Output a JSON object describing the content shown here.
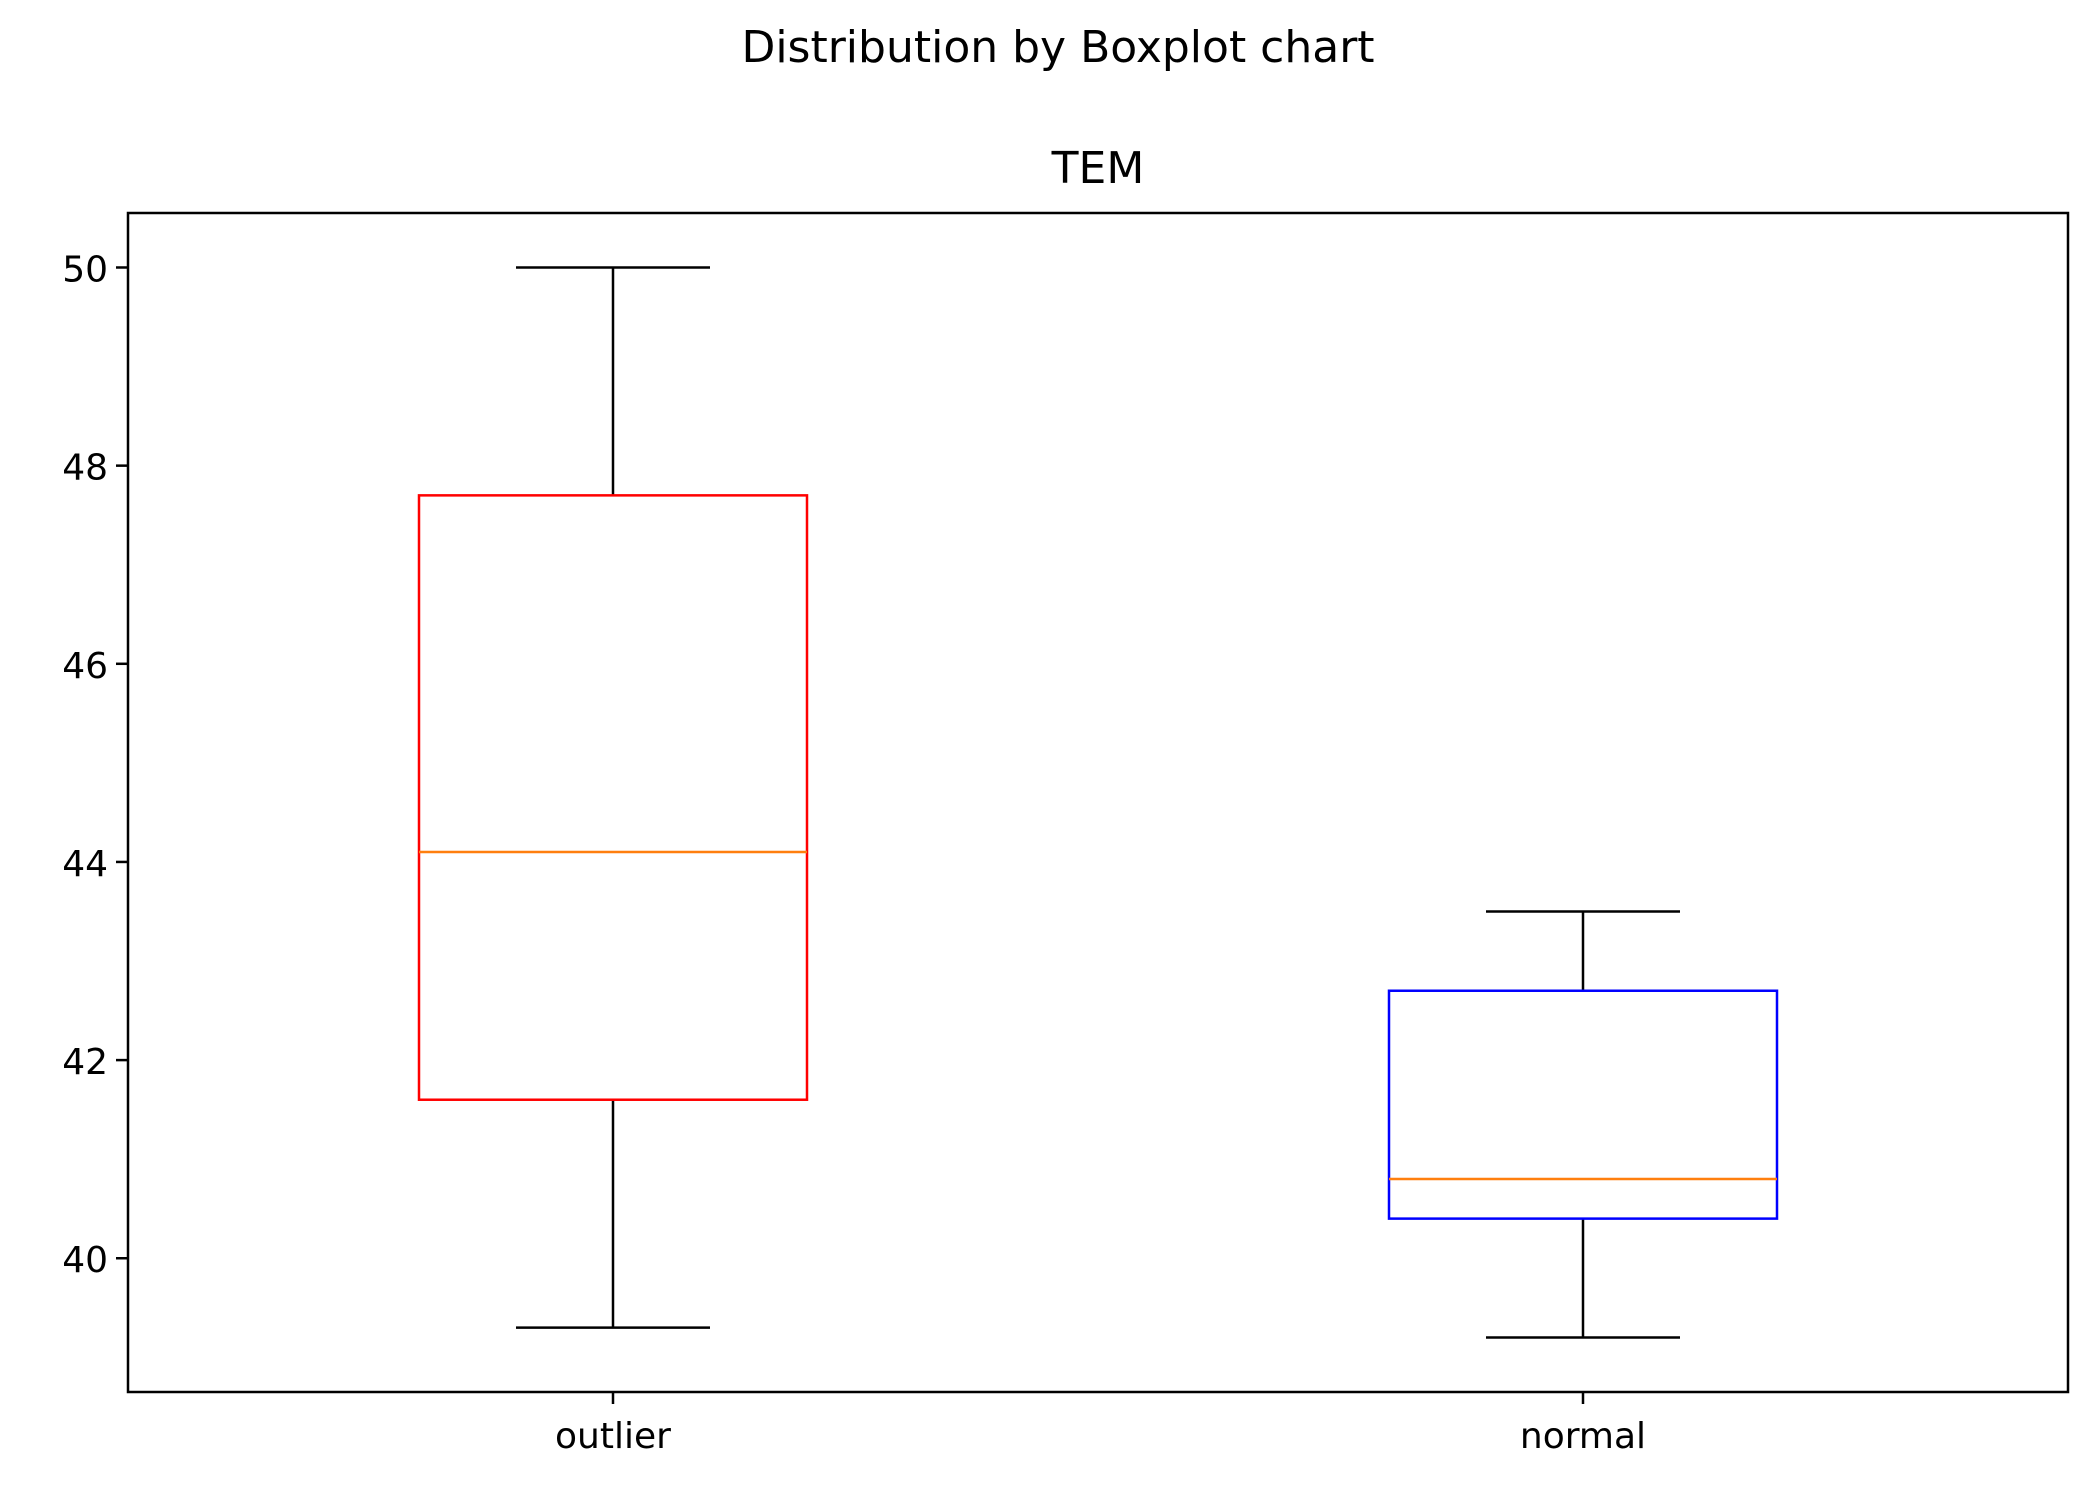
{
  "chart_data": {
    "type": "boxplot",
    "suptitle": "Distribution by Boxplot chart",
    "title": "TEM",
    "xlabel": "",
    "ylabel": "",
    "ylim": [
      38.65,
      50.55
    ],
    "yticks": [
      40,
      42,
      44,
      46,
      48,
      50
    ],
    "ytick_labels": [
      "40",
      "42",
      "44",
      "46",
      "48",
      "50"
    ],
    "grid": false,
    "categories": [
      "outlier",
      "normal"
    ],
    "boxes": [
      {
        "category": "outlier",
        "whisker_low": 39.3,
        "q1": 41.6,
        "median": 44.1,
        "q3": 47.7,
        "whisker_high": 50.0,
        "box_color": "#ff0000"
      },
      {
        "category": "normal",
        "whisker_low": 39.2,
        "q1": 40.4,
        "median": 40.8,
        "q3": 42.7,
        "whisker_high": 43.5,
        "box_color": "#0000ff"
      }
    ],
    "median_color": "#ff7f0e",
    "whisker_color": "#000000"
  }
}
